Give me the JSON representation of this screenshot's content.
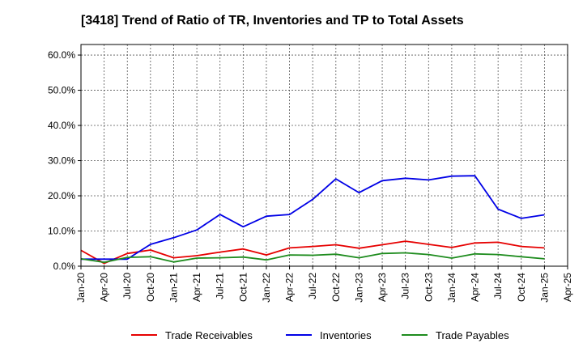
{
  "chart_data": {
    "type": "line",
    "title": "[3418]  Trend of Ratio of TR, Inventories and TP to Total Assets",
    "xlabel": "",
    "ylabel": "",
    "ylim": [
      0,
      0.63
    ],
    "y_ticks": [
      0,
      0.1,
      0.2,
      0.3,
      0.4,
      0.5,
      0.6
    ],
    "y_tick_labels": [
      "0.0%",
      "10.0%",
      "20.0%",
      "30.0%",
      "40.0%",
      "50.0%",
      "60.0%"
    ],
    "x_tick_labels": [
      "Jan-20",
      "Apr-20",
      "Jul-20",
      "Oct-20",
      "Jan-21",
      "Apr-21",
      "Jul-21",
      "Oct-21",
      "Jan-22",
      "Apr-22",
      "Jul-22",
      "Oct-22",
      "Jan-23",
      "Apr-23",
      "Jul-23",
      "Oct-23",
      "Jan-24",
      "Apr-24",
      "Jul-24",
      "Oct-24",
      "Jan-25",
      "Apr-25"
    ],
    "x": [
      "Jan-20",
      "Apr-20",
      "Jul-20",
      "Oct-20",
      "Jan-21",
      "Apr-21",
      "Jul-21",
      "Oct-21",
      "Jan-22",
      "Apr-22",
      "Jul-22",
      "Oct-22",
      "Jan-23",
      "Apr-23",
      "Jul-23",
      "Oct-23",
      "Jan-24",
      "Apr-24",
      "Jul-24",
      "Oct-24",
      "Jan-25"
    ],
    "grid": true,
    "legend_position": "bottom",
    "series": [
      {
        "name": "Trade Receivables",
        "color": "#e60000",
        "values": [
          0.045,
          0.008,
          0.036,
          0.046,
          0.024,
          0.03,
          0.04,
          0.049,
          0.032,
          0.052,
          0.056,
          0.061,
          0.051,
          0.061,
          0.071,
          0.062,
          0.053,
          0.066,
          0.068,
          0.056,
          0.052
        ]
      },
      {
        "name": "Inventories",
        "color": "#0000e6",
        "values": [
          0.02,
          0.02,
          0.02,
          0.062,
          0.081,
          0.103,
          0.147,
          0.112,
          0.142,
          0.147,
          0.19,
          0.248,
          0.209,
          0.243,
          0.25,
          0.245,
          0.256,
          0.257,
          0.162,
          0.136,
          0.146
        ]
      },
      {
        "name": "Trade Payables",
        "color": "#1e8c1e",
        "values": [
          0.021,
          0.011,
          0.025,
          0.027,
          0.012,
          0.023,
          0.024,
          0.026,
          0.018,
          0.032,
          0.031,
          0.034,
          0.024,
          0.036,
          0.038,
          0.033,
          0.023,
          0.035,
          0.033,
          0.027,
          0.021
        ]
      }
    ]
  }
}
